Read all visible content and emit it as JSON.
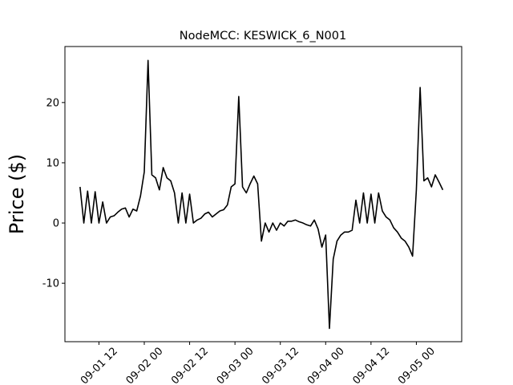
{
  "chart_data": {
    "type": "line",
    "title": "NodeMCC: KESWICK_6_N001",
    "y_label": "Price ($)",
    "x": [
      "09-01 07",
      "09-01 08",
      "09-01 09",
      "09-01 10",
      "09-01 11",
      "09-01 12",
      "09-01 13",
      "09-01 14",
      "09-01 15",
      "09-01 16",
      "09-01 17",
      "09-01 18",
      "09-01 19",
      "09-01 20",
      "09-01 21",
      "09-01 22",
      "09-01 23",
      "09-02 00",
      "09-02 01",
      "09-02 02",
      "09-02 03",
      "09-02 04",
      "09-02 05",
      "09-02 06",
      "09-02 07",
      "09-02 08",
      "09-02 09",
      "09-02 10",
      "09-02 11",
      "09-02 12",
      "09-02 13",
      "09-02 14",
      "09-02 15",
      "09-02 16",
      "09-02 17",
      "09-02 18",
      "09-02 19",
      "09-02 20",
      "09-02 21",
      "09-02 22",
      "09-02 23",
      "09-03 00",
      "09-03 01",
      "09-03 02",
      "09-03 03",
      "09-03 04",
      "09-03 05",
      "09-03 06",
      "09-03 07",
      "09-03 08",
      "09-03 09",
      "09-03 10",
      "09-03 11",
      "09-03 12",
      "09-03 13",
      "09-03 14",
      "09-03 15",
      "09-03 16",
      "09-03 17",
      "09-03 18",
      "09-03 19",
      "09-03 20",
      "09-03 21",
      "09-03 22",
      "09-03 23",
      "09-04 00",
      "09-04 01",
      "09-04 02",
      "09-04 03",
      "09-04 04",
      "09-04 05",
      "09-04 06",
      "09-04 07",
      "09-04 08",
      "09-04 09",
      "09-04 10",
      "09-04 11",
      "09-04 12",
      "09-04 13",
      "09-04 14",
      "09-04 15",
      "09-04 16",
      "09-04 17",
      "09-04 18",
      "09-04 19",
      "09-04 20",
      "09-04 21",
      "09-04 22",
      "09-04 23",
      "09-05 00",
      "09-05 01",
      "09-05 02",
      "09-05 03",
      "09-05 04",
      "09-05 05",
      "09-05 06",
      "09-05 07"
    ],
    "series": [
      {
        "color": "#000000",
        "values": [
          6,
          0,
          5.3,
          0,
          5.2,
          0,
          3.5,
          0,
          1,
          1.2,
          1.8,
          2.3,
          2.5,
          1,
          2.3,
          2,
          4.5,
          8.5,
          27,
          8,
          7.5,
          5.5,
          9.2,
          7.5,
          7,
          5,
          0,
          5,
          0,
          4.8,
          0,
          0.5,
          0.8,
          1.5,
          1.8,
          1,
          1.5,
          2,
          2.2,
          3,
          6,
          6.5,
          21,
          6,
          5,
          6.5,
          7.8,
          6.5,
          -3,
          0,
          -1.5,
          0,
          -1.2,
          0,
          -0.5,
          0.3,
          0.3,
          0.5,
          0.2,
          0,
          -0.3,
          -0.5,
          0.5,
          -1,
          -4,
          -2,
          -17.5,
          -6,
          -3,
          -2,
          -1.5,
          -1.5,
          -1.2,
          3.8,
          0,
          5,
          0,
          4.8,
          0,
          5,
          2,
          1,
          0.5,
          -0.8,
          -1.5,
          -2.5,
          -3,
          -4,
          -5.5,
          5.5,
          22.5,
          7,
          7.5,
          6,
          8,
          6.8,
          5.5
        ]
      }
    ],
    "xlim": [
      "09-01 03",
      "09-05 12"
    ],
    "xticks": [
      "09-01 12",
      "09-02 00",
      "09-02 12",
      "09-03 00",
      "09-03 12",
      "09-04 00",
      "09-04 12",
      "09-05 00"
    ],
    "ylim": [
      -19.7,
      29.3
    ],
    "yticks": [
      -10,
      0,
      10,
      20
    ]
  }
}
